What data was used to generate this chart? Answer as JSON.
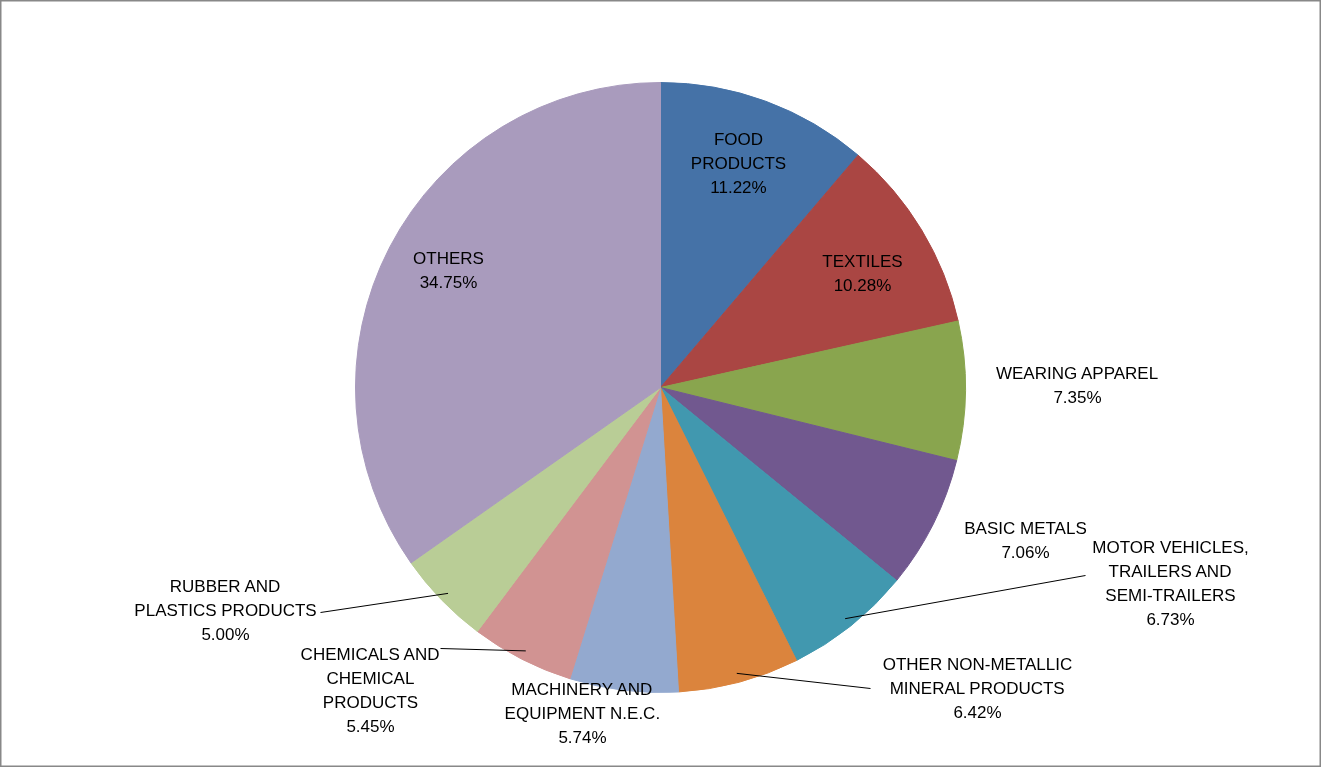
{
  "chart_data": {
    "type": "pie",
    "categories": [
      "FOOD PRODUCTS",
      "TEXTILES",
      "WEARING APPAREL",
      "BASIC METALS",
      "MOTOR VEHICLES, TRAILERS AND SEMI-TRAILERS",
      "OTHER NON-METALLIC MINERAL PRODUCTS",
      "MACHINERY AND EQUIPMENT N.E.C.",
      "CHEMICALS AND CHEMICAL PRODUCTS",
      "RUBBER AND PLASTICS PRODUCTS",
      "OTHERS"
    ],
    "values": [
      11.22,
      10.28,
      7.35,
      7.06,
      6.73,
      6.42,
      5.74,
      5.45,
      5.0,
      34.75
    ],
    "value_labels": [
      "11.22%",
      "10.28%",
      "7.35%",
      "7.06%",
      "6.73%",
      "6.42%",
      "5.74%",
      "5.45%",
      "5.00%",
      "34.75%"
    ],
    "colors": [
      "#4572a7",
      "#aa4643",
      "#89a54e",
      "#71588f",
      "#4198af",
      "#db843d",
      "#93a9cf",
      "#d19392",
      "#b9cd96",
      "#a99bbd"
    ]
  }
}
